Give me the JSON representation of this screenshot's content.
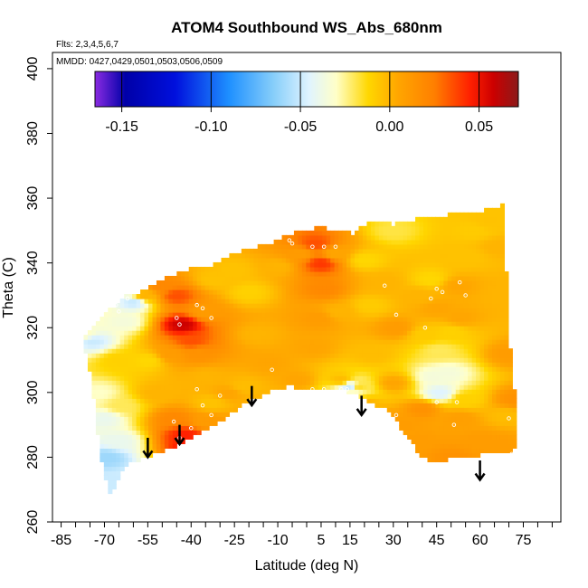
{
  "chart_data": {
    "type": "heatmap",
    "title": "ATOM4 Southbound WS_Abs_680nm",
    "subtitle_flights": "Flts: 2,3,4,5,6,7",
    "subtitle_dates": "MMDD: 0427,0429,0501,0503,0506,0509",
    "xlabel": "Latitude (deg N)",
    "ylabel": "Theta (C)",
    "xlim": [
      -88,
      88
    ],
    "ylim": [
      260,
      405
    ],
    "x_ticks": [
      "-85",
      "-70",
      "-55",
      "-40",
      "-25",
      "-10",
      "5",
      "15",
      "30",
      "45",
      "60",
      "75"
    ],
    "x_tick_values": [
      -85,
      -70,
      -55,
      -40,
      -25,
      -10,
      5,
      15,
      30,
      45,
      60,
      75
    ],
    "x_minor_step": 5,
    "y_ticks": [
      "260",
      "280",
      "300",
      "320",
      "340",
      "360",
      "380",
      "400"
    ],
    "y_tick_values": [
      260,
      280,
      300,
      320,
      340,
      360,
      380,
      400
    ],
    "colorbar": {
      "min": -0.165,
      "max": 0.072,
      "tick_labels": [
        "-0.15",
        "-0.10",
        "-0.05",
        "0.00",
        "0.05"
      ],
      "tick_values": [
        -0.15,
        -0.1,
        -0.05,
        0.0,
        0.05
      ],
      "stops": [
        {
          "v": -0.165,
          "c": "#8a2be2"
        },
        {
          "v": -0.148,
          "c": "#0000a8"
        },
        {
          "v": -0.12,
          "c": "#0010dd"
        },
        {
          "v": -0.09,
          "c": "#1e90ff"
        },
        {
          "v": -0.065,
          "c": "#87cefa"
        },
        {
          "v": -0.045,
          "c": "#e0f4ff"
        },
        {
          "v": -0.03,
          "c": "#ffffc8"
        },
        {
          "v": -0.012,
          "c": "#ffd700"
        },
        {
          "v": 0.005,
          "c": "#ffa500"
        },
        {
          "v": 0.025,
          "c": "#ff7f00"
        },
        {
          "v": 0.045,
          "c": "#ff2000"
        },
        {
          "v": 0.058,
          "c": "#cc0000"
        },
        {
          "v": 0.072,
          "c": "#8b1a1a"
        }
      ]
    },
    "field_nodes": [
      [
        -77,
        318,
        -0.03
      ],
      [
        -74,
        316,
        -0.05
      ],
      [
        -72,
        300,
        -0.03
      ],
      [
        -70,
        292,
        -0.04
      ],
      [
        -69,
        280,
        -0.06
      ],
      [
        -67,
        272,
        -0.05
      ],
      [
        -65,
        285,
        -0.04
      ],
      [
        -64,
        296,
        -0.02
      ],
      [
        -65,
        310,
        -0.01
      ],
      [
        -63,
        322,
        -0.035
      ],
      [
        -60,
        328,
        -0.05
      ],
      [
        -56,
        330,
        0.0
      ],
      [
        -50,
        333,
        0.02
      ],
      [
        -45,
        330,
        0.035
      ],
      [
        -43,
        321,
        0.058
      ],
      [
        -40,
        316,
        0.035
      ],
      [
        -47,
        312,
        0.01
      ],
      [
        -55,
        310,
        -0.012
      ],
      [
        -52,
        300,
        0.0
      ],
      [
        -46,
        292,
        0.02
      ],
      [
        -42,
        287,
        0.045
      ],
      [
        -40,
        283,
        0.05
      ],
      [
        -35,
        291,
        0.01
      ],
      [
        -33,
        297,
        -0.005
      ],
      [
        -35,
        305,
        0.0
      ],
      [
        -38,
        312,
        0.015
      ],
      [
        -35,
        325,
        0.01
      ],
      [
        -32,
        335,
        -0.005
      ],
      [
        -25,
        338,
        -0.005
      ],
      [
        -20,
        331,
        -0.01
      ],
      [
        -17,
        318,
        0.0
      ],
      [
        -13,
        309,
        0.005
      ],
      [
        -22,
        302,
        -0.003
      ],
      [
        -27,
        300,
        0.005
      ],
      [
        -10,
        339,
        0.0
      ],
      [
        -2,
        343,
        0.01
      ],
      [
        3,
        346,
        0.035
      ],
      [
        5,
        340,
        0.04
      ],
      [
        6,
        332,
        0.02
      ],
      [
        4,
        323,
        0.01
      ],
      [
        2,
        314,
        0.005
      ],
      [
        -3,
        304,
        0.005
      ],
      [
        10,
        343,
        0.005
      ],
      [
        11,
        325,
        0.0
      ],
      [
        12,
        304,
        -0.003
      ],
      [
        15,
        302,
        -0.05
      ],
      [
        16,
        300,
        -0.03
      ],
      [
        18,
        302,
        -0.015
      ],
      [
        20,
        297,
        0.0
      ],
      [
        24,
        292,
        0.01
      ],
      [
        28,
        288,
        0.005
      ],
      [
        23,
        312,
        -0.003
      ],
      [
        22,
        327,
        -0.008
      ],
      [
        20,
        341,
        -0.012
      ],
      [
        30,
        350,
        -0.018
      ],
      [
        27,
        334,
        0.0
      ],
      [
        31,
        320,
        0.01
      ],
      [
        30,
        303,
        0.005
      ],
      [
        33,
        290,
        0.01
      ],
      [
        38,
        285,
        0.01
      ],
      [
        40,
        295,
        0.015
      ],
      [
        46,
        300,
        -0.045
      ],
      [
        44,
        305,
        -0.035
      ],
      [
        49,
        306,
        -0.035
      ],
      [
        46,
        313,
        -0.02
      ],
      [
        41,
        318,
        -0.008
      ],
      [
        50,
        319,
        -0.01
      ],
      [
        53,
        323,
        0.005
      ],
      [
        55,
        298,
        -0.01
      ],
      [
        45,
        326,
        0.005
      ],
      [
        39,
        330,
        0.0
      ],
      [
        43,
        335,
        -0.012
      ],
      [
        52,
        333,
        0.005
      ],
      [
        56,
        342,
        -0.005
      ],
      [
        58,
        350,
        -0.008
      ],
      [
        63,
        353,
        -0.005
      ],
      [
        66,
        345,
        0.0
      ],
      [
        68,
        330,
        0.0
      ],
      [
        70,
        312,
        0.01
      ],
      [
        72,
        298,
        0.015
      ],
      [
        69,
        293,
        -0.003
      ],
      [
        66,
        283,
        0.01
      ],
      [
        60,
        285,
        0.01
      ],
      [
        50,
        280,
        0.015
      ],
      [
        53,
        292,
        0.008
      ],
      [
        36,
        278,
        0.01
      ]
    ],
    "coverage_polygon": [
      [
        -78,
        317
      ],
      [
        -72,
        322
      ],
      [
        -70,
        325
      ],
      [
        -66,
        327
      ],
      [
        -63,
        330
      ],
      [
        -58,
        331
      ],
      [
        -53,
        333
      ],
      [
        -48,
        336
      ],
      [
        -43,
        337
      ],
      [
        -38,
        339
      ],
      [
        -33,
        339
      ],
      [
        -28,
        342
      ],
      [
        -22,
        344
      ],
      [
        -12,
        346
      ],
      [
        -6,
        349
      ],
      [
        -1,
        350
      ],
      [
        5,
        351
      ],
      [
        11,
        350
      ],
      [
        16,
        349
      ],
      [
        22,
        353
      ],
      [
        30,
        352
      ],
      [
        40,
        354
      ],
      [
        50,
        355
      ],
      [
        60,
        356
      ],
      [
        68,
        358
      ],
      [
        69,
        340
      ],
      [
        70,
        318
      ],
      [
        72,
        300
      ],
      [
        72,
        293
      ],
      [
        72,
        283
      ],
      [
        70,
        281
      ],
      [
        62,
        281
      ],
      [
        54,
        280
      ],
      [
        46,
        279
      ],
      [
        42,
        279
      ],
      [
        39,
        281
      ],
      [
        35,
        286
      ],
      [
        31,
        291
      ],
      [
        27,
        295
      ],
      [
        22,
        297
      ],
      [
        16,
        300
      ],
      [
        9,
        301
      ],
      [
        0,
        301
      ],
      [
        -6,
        302
      ],
      [
        -11,
        301
      ],
      [
        -16,
        299
      ],
      [
        -21,
        297
      ],
      [
        -27,
        293
      ],
      [
        -32,
        290
      ],
      [
        -38,
        287
      ],
      [
        -43,
        284
      ],
      [
        -49,
        282
      ],
      [
        -53,
        281
      ],
      [
        -56,
        280
      ],
      [
        -58,
        279
      ],
      [
        -60,
        278
      ],
      [
        -62,
        278
      ],
      [
        -64,
        275
      ],
      [
        -66,
        271
      ],
      [
        -68,
        268
      ],
      [
        -69,
        271
      ],
      [
        -71,
        279
      ],
      [
        -73,
        291
      ],
      [
        -74,
        302
      ],
      [
        -76,
        310
      ]
    ],
    "sample_points": [
      [
        -66,
        327
      ],
      [
        -65,
        325
      ],
      [
        -62,
        329
      ],
      [
        -45,
        323
      ],
      [
        -44,
        321
      ],
      [
        -38,
        327
      ],
      [
        -36,
        326
      ],
      [
        -33,
        323
      ],
      [
        -38,
        301
      ],
      [
        -40,
        289
      ],
      [
        -44,
        286
      ],
      [
        -46,
        291
      ],
      [
        -36,
        296
      ],
      [
        -33,
        293
      ],
      [
        -30,
        299
      ],
      [
        -12,
        307
      ],
      [
        -6,
        347
      ],
      [
        -5,
        346
      ],
      [
        2,
        345
      ],
      [
        6,
        345
      ],
      [
        10,
        345
      ],
      [
        14,
        301
      ],
      [
        12,
        301
      ],
      [
        6,
        301
      ],
      [
        2,
        301
      ],
      [
        -2,
        300
      ],
      [
        27,
        333
      ],
      [
        31,
        324
      ],
      [
        41,
        320
      ],
      [
        43,
        329
      ],
      [
        45,
        332
      ],
      [
        47,
        331
      ],
      [
        53,
        334
      ],
      [
        55,
        330
      ],
      [
        45,
        297
      ],
      [
        52,
        297
      ],
      [
        31,
        293
      ],
      [
        51,
        290
      ],
      [
        70,
        292
      ],
      [
        71,
        281
      ]
    ],
    "arrows": [
      {
        "x": -55,
        "y_top": 286,
        "y_bottom": 280
      },
      {
        "x": -44,
        "y_top": 290,
        "y_bottom": 284
      },
      {
        "x": -19,
        "y_top": 302,
        "y_bottom": 296
      },
      {
        "x": 19,
        "y_top": 299,
        "y_bottom": 293
      },
      {
        "x": 60,
        "y_top": 279,
        "y_bottom": 273
      }
    ]
  }
}
